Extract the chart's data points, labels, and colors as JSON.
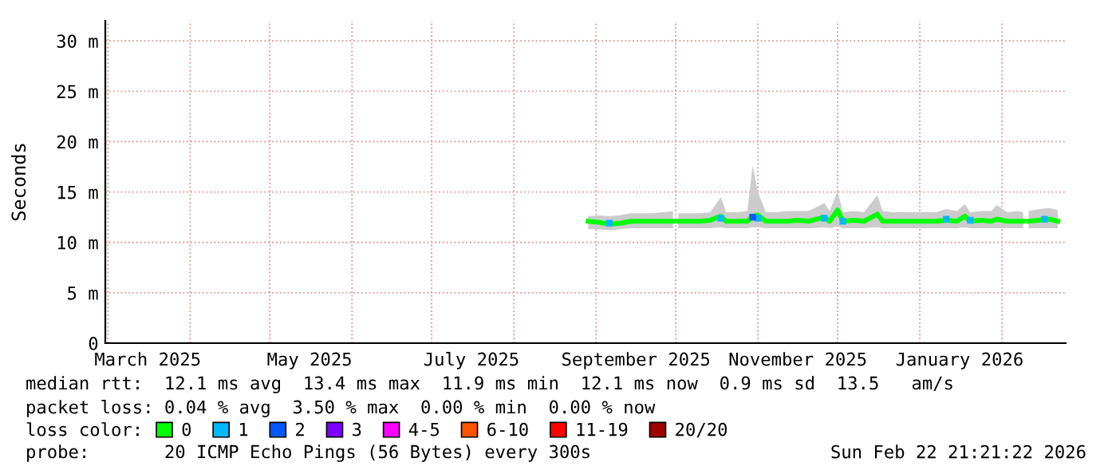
{
  "chart_data": {
    "type": "line",
    "ylabel": "Seconds",
    "xlim": [
      "2025-02-28",
      "2026-02-25"
    ],
    "xticks": [
      {
        "value": "2025-03-01",
        "label": null
      },
      {
        "value": "2025-03-16",
        "label": "March 2025"
      },
      {
        "value": "2025-04-01",
        "label": null
      },
      {
        "value": "2025-05-01",
        "label": null
      },
      {
        "value": "2025-05-16",
        "label": "May 2025"
      },
      {
        "value": "2025-06-01",
        "label": null
      },
      {
        "value": "2025-07-01",
        "label": null
      },
      {
        "value": "2025-07-16",
        "label": "July 2025"
      },
      {
        "value": "2025-08-01",
        "label": null
      },
      {
        "value": "2025-09-01",
        "label": null
      },
      {
        "value": "2025-09-16",
        "label": "September 2025"
      },
      {
        "value": "2025-10-01",
        "label": null
      },
      {
        "value": "2025-11-01",
        "label": null
      },
      {
        "value": "2025-11-16",
        "label": "November 2025"
      },
      {
        "value": "2025-12-01",
        "label": null
      },
      {
        "value": "2026-01-01",
        "label": null
      },
      {
        "value": "2026-01-16",
        "label": "January 2026"
      },
      {
        "value": "2026-02-01",
        "label": null
      }
    ],
    "ylim": [
      0,
      32
    ],
    "yticks": [
      0,
      {
        "value": 5,
        "label": "5 m"
      },
      {
        "value": 10,
        "label": "10 m"
      },
      {
        "value": 15,
        "label": "15 m"
      },
      {
        "value": 20,
        "label": "20 m"
      },
      {
        "value": 25,
        "label": "25 m"
      },
      {
        "value": 30,
        "label": "30 m"
      }
    ],
    "grid": true,
    "legend": "bottom",
    "legend_title": "loss color:",
    "series": [
      {
        "name": "0",
        "color": "#00ff00",
        "x": [
          "2025-08-29",
          "2025-09-02",
          "2025-09-06",
          "2025-09-10",
          "2025-09-14",
          "2025-09-18",
          "2025-09-22",
          "2025-09-26",
          "2025-09-30",
          "2025-10-01",
          "2025-10-02",
          "2025-10-06",
          "2025-10-10",
          "2025-10-14",
          "2025-10-18",
          "2025-10-20",
          "2025-10-24",
          "2025-10-28",
          "2025-10-30",
          "2025-11-01",
          "2025-11-04",
          "2025-11-08",
          "2025-11-12",
          "2025-11-16",
          "2025-11-20",
          "2025-11-26",
          "2025-11-28",
          "2025-12-01",
          "2025-12-03",
          "2025-12-07",
          "2025-12-11",
          "2025-12-16",
          "2025-12-18",
          "2025-12-22",
          "2025-12-26",
          "2025-12-30",
          "2026-01-03",
          "2026-01-07",
          "2026-01-11",
          "2026-01-15",
          "2026-01-18",
          "2026-01-20",
          "2026-01-24",
          "2026-01-28",
          "2026-01-30",
          "2026-02-03",
          "2026-02-07",
          "2026-02-09",
          "2026-02-10",
          "2026-02-11",
          "2026-02-15",
          "2026-02-19",
          "2026-02-22"
        ],
        "values": [
          12.1,
          12.0,
          11.8,
          11.9,
          12.1,
          12.1,
          12.1,
          12.1,
          12.1,
          null,
          12.1,
          12.1,
          12.1,
          12.2,
          12.6,
          12.1,
          12.1,
          12.1,
          12.6,
          12.7,
          12.1,
          12.1,
          12.1,
          12.2,
          12.1,
          12.5,
          12.1,
          13.2,
          12.1,
          12.2,
          12.1,
          12.8,
          12.1,
          12.1,
          12.1,
          12.1,
          12.1,
          12.1,
          12.2,
          12.1,
          12.6,
          12.1,
          12.2,
          12.1,
          12.3,
          12.1,
          12.1,
          12.1,
          null,
          12.1,
          12.2,
          12.3,
          12.1
        ],
        "lower": [
          11.3,
          11.3,
          11.2,
          11.3,
          11.4,
          11.4,
          11.4,
          11.4,
          11.4,
          null,
          11.4,
          11.4,
          11.4,
          11.4,
          11.5,
          11.4,
          11.4,
          11.4,
          11.5,
          11.5,
          11.4,
          11.4,
          11.4,
          11.4,
          11.4,
          11.5,
          11.4,
          11.6,
          11.4,
          11.4,
          11.4,
          11.5,
          11.4,
          11.4,
          11.4,
          11.4,
          11.4,
          11.4,
          11.4,
          11.4,
          11.5,
          11.4,
          11.4,
          11.4,
          11.4,
          11.4,
          11.4,
          11.4,
          null,
          11.4,
          11.4,
          11.4,
          11.4
        ],
        "upper": [
          12.6,
          12.7,
          12.6,
          12.7,
          12.9,
          12.9,
          12.9,
          13.0,
          13.1,
          null,
          12.9,
          12.9,
          12.9,
          13.0,
          14.5,
          13.0,
          13.0,
          13.1,
          17.6,
          15.0,
          13.0,
          13.0,
          13.1,
          13.1,
          13.1,
          13.9,
          13.1,
          15.1,
          13.0,
          13.1,
          13.0,
          14.7,
          13.1,
          13.0,
          13.0,
          13.0,
          13.0,
          13.0,
          13.3,
          13.1,
          13.8,
          13.0,
          13.1,
          13.1,
          13.7,
          13.0,
          13.1,
          13.0,
          null,
          13.1,
          13.3,
          13.4,
          13.2
        ]
      },
      {
        "name": "1",
        "color": "#00b8ff",
        "type": "scatter",
        "marker": "square",
        "x": [
          "2025-09-06",
          "2025-10-18",
          "2025-11-01",
          "2025-11-26",
          "2025-12-03",
          "2026-01-11",
          "2026-01-20",
          "2026-02-17"
        ],
        "values": [
          11.9,
          12.4,
          12.4,
          12.4,
          12.1,
          12.3,
          12.2,
          12.3
        ]
      },
      {
        "name": "2",
        "color": "#0059ff",
        "type": "scatter",
        "marker": "square",
        "x": [
          "2025-10-30"
        ],
        "values": [
          12.5
        ]
      },
      {
        "name": "3",
        "color": "#7e00ff",
        "type": "scatter"
      },
      {
        "name": "4-5",
        "color": "#ff00ff",
        "type": "scatter"
      },
      {
        "name": "6-10",
        "color": "#ff5500",
        "type": "scatter"
      },
      {
        "name": "11-19",
        "color": "#ff0000",
        "type": "scatter"
      },
      {
        "name": "20/20",
        "color": "#a10000",
        "type": "scatter"
      }
    ],
    "annotations": [
      "median rtt:  12.1 ms avg  13.4 ms max  11.9 ms min  12.1 ms now  0.9 ms sd  13.5   am/s",
      "packet loss: 0.04 % avg  3.50 % max  0.00 % min  0.00 % now",
      "probe:       20 ICMP Echo Pings (56 Bytes) every 300s",
      "Sun Feb 22 21:21:22 2026"
    ]
  }
}
